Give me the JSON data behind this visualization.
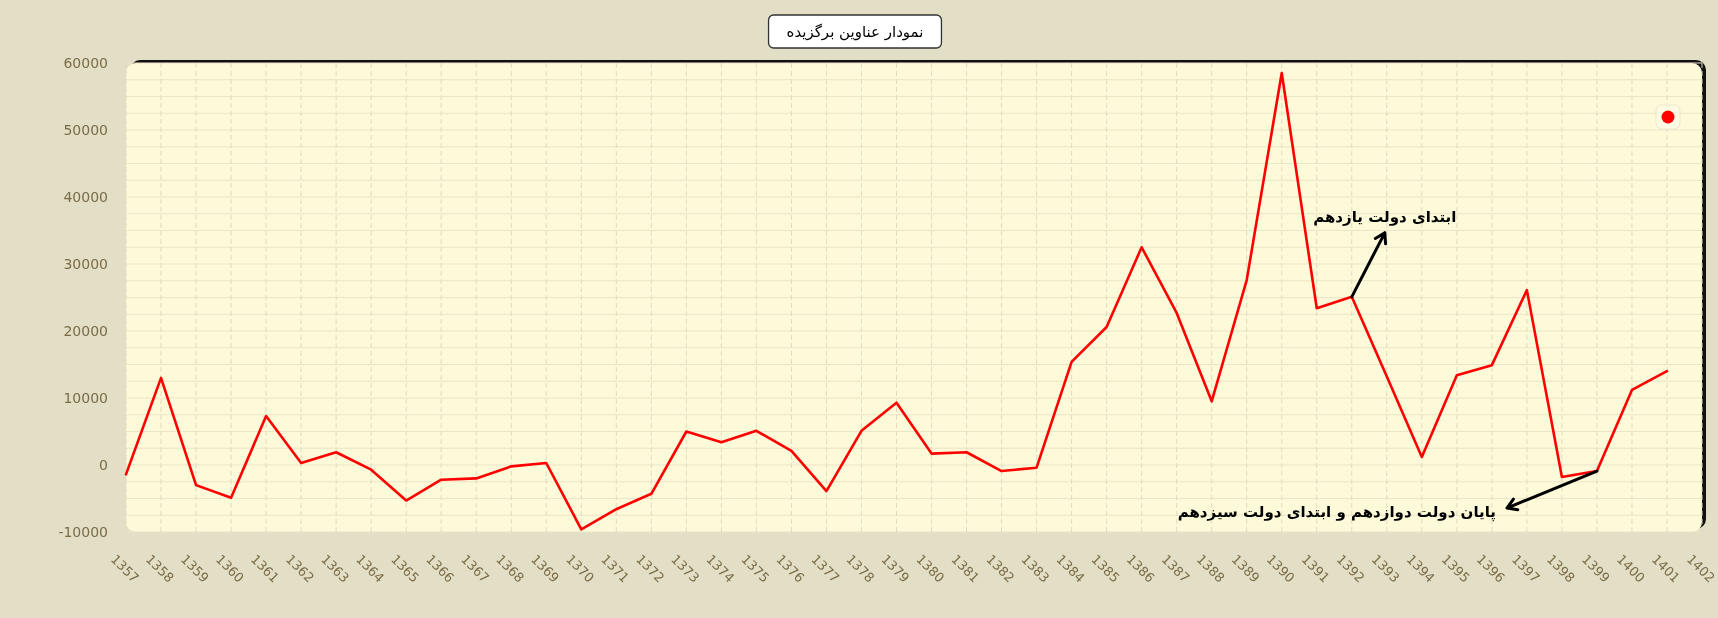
{
  "chart_data": {
    "type": "line",
    "title": "نمودار عناوین برگزیده",
    "x": [
      1357,
      1358,
      1359,
      1360,
      1361,
      1362,
      1363,
      1364,
      1365,
      1366,
      1367,
      1368,
      1369,
      1370,
      1371,
      1372,
      1373,
      1374,
      1375,
      1376,
      1377,
      1378,
      1379,
      1380,
      1381,
      1382,
      1383,
      1384,
      1385,
      1386,
      1387,
      1388,
      1389,
      1390,
      1391,
      1392,
      1393,
      1394,
      1395,
      1396,
      1397,
      1398,
      1399,
      1400,
      1401
    ],
    "series": [
      {
        "color": "#ff0000",
        "values": [
          -1400,
          13000,
          -3000,
          -4900,
          7300,
          300,
          1900,
          -700,
          -5300,
          -2200,
          -2000,
          -200,
          300,
          -9600,
          -6600,
          -4300,
          5000,
          3400,
          5100,
          2100,
          -3900,
          5100,
          9300,
          1700,
          1900,
          -900,
          -400,
          15400,
          20600,
          32500,
          22700,
          9500,
          27600,
          58500,
          23400,
          25100,
          13200,
          1200,
          13400,
          14900,
          26100,
          -1800,
          -900,
          11200,
          14000
        ]
      }
    ],
    "xlim": [
      1357,
      1402
    ],
    "xticks": [
      1357,
      1358,
      1359,
      1360,
      1361,
      1362,
      1363,
      1364,
      1365,
      1366,
      1367,
      1368,
      1369,
      1370,
      1371,
      1372,
      1373,
      1374,
      1375,
      1376,
      1377,
      1378,
      1379,
      1380,
      1381,
      1382,
      1383,
      1384,
      1385,
      1386,
      1387,
      1388,
      1389,
      1390,
      1391,
      1392,
      1393,
      1394,
      1395,
      1396,
      1397,
      1398,
      1399,
      1400,
      1401,
      1402
    ],
    "ylim": [
      -10000,
      60000
    ],
    "yticks": [
      -10000,
      {
        "value": -7500,
        "label": null
      },
      {
        "value": -5000,
        "label": null
      },
      {
        "value": -2500,
        "label": null
      },
      0,
      {
        "value": 2500,
        "label": null
      },
      {
        "value": 5000,
        "label": null
      },
      {
        "value": 7500,
        "label": null
      },
      10000,
      {
        "value": 12500,
        "label": null
      },
      {
        "value": 15000,
        "label": null
      },
      {
        "value": 17500,
        "label": null
      },
      20000,
      {
        "value": 22500,
        "label": null
      },
      {
        "value": 25000,
        "label": null
      },
      {
        "value": 27500,
        "label": null
      },
      30000,
      {
        "value": 32500,
        "label": null
      },
      {
        "value": 35000,
        "label": null
      },
      {
        "value": 37500,
        "label": null
      },
      40000,
      {
        "value": 42500,
        "label": null
      },
      {
        "value": 45000,
        "label": null
      },
      {
        "value": 47500,
        "label": null
      },
      50000,
      {
        "value": 52500,
        "label": null
      },
      {
        "value": 55000,
        "label": null
      },
      {
        "value": 57500,
        "label": null
      },
      60000
    ],
    "grid": true,
    "annotations": [
      {
        "text": "ابتدای دولت یازدهم",
        "x": 1392,
        "y": 25100
      },
      {
        "text": "پایان دولت دوازدهم و ابتدای دولت سیزدهم",
        "x": 1399,
        "y": -900
      }
    ]
  }
}
